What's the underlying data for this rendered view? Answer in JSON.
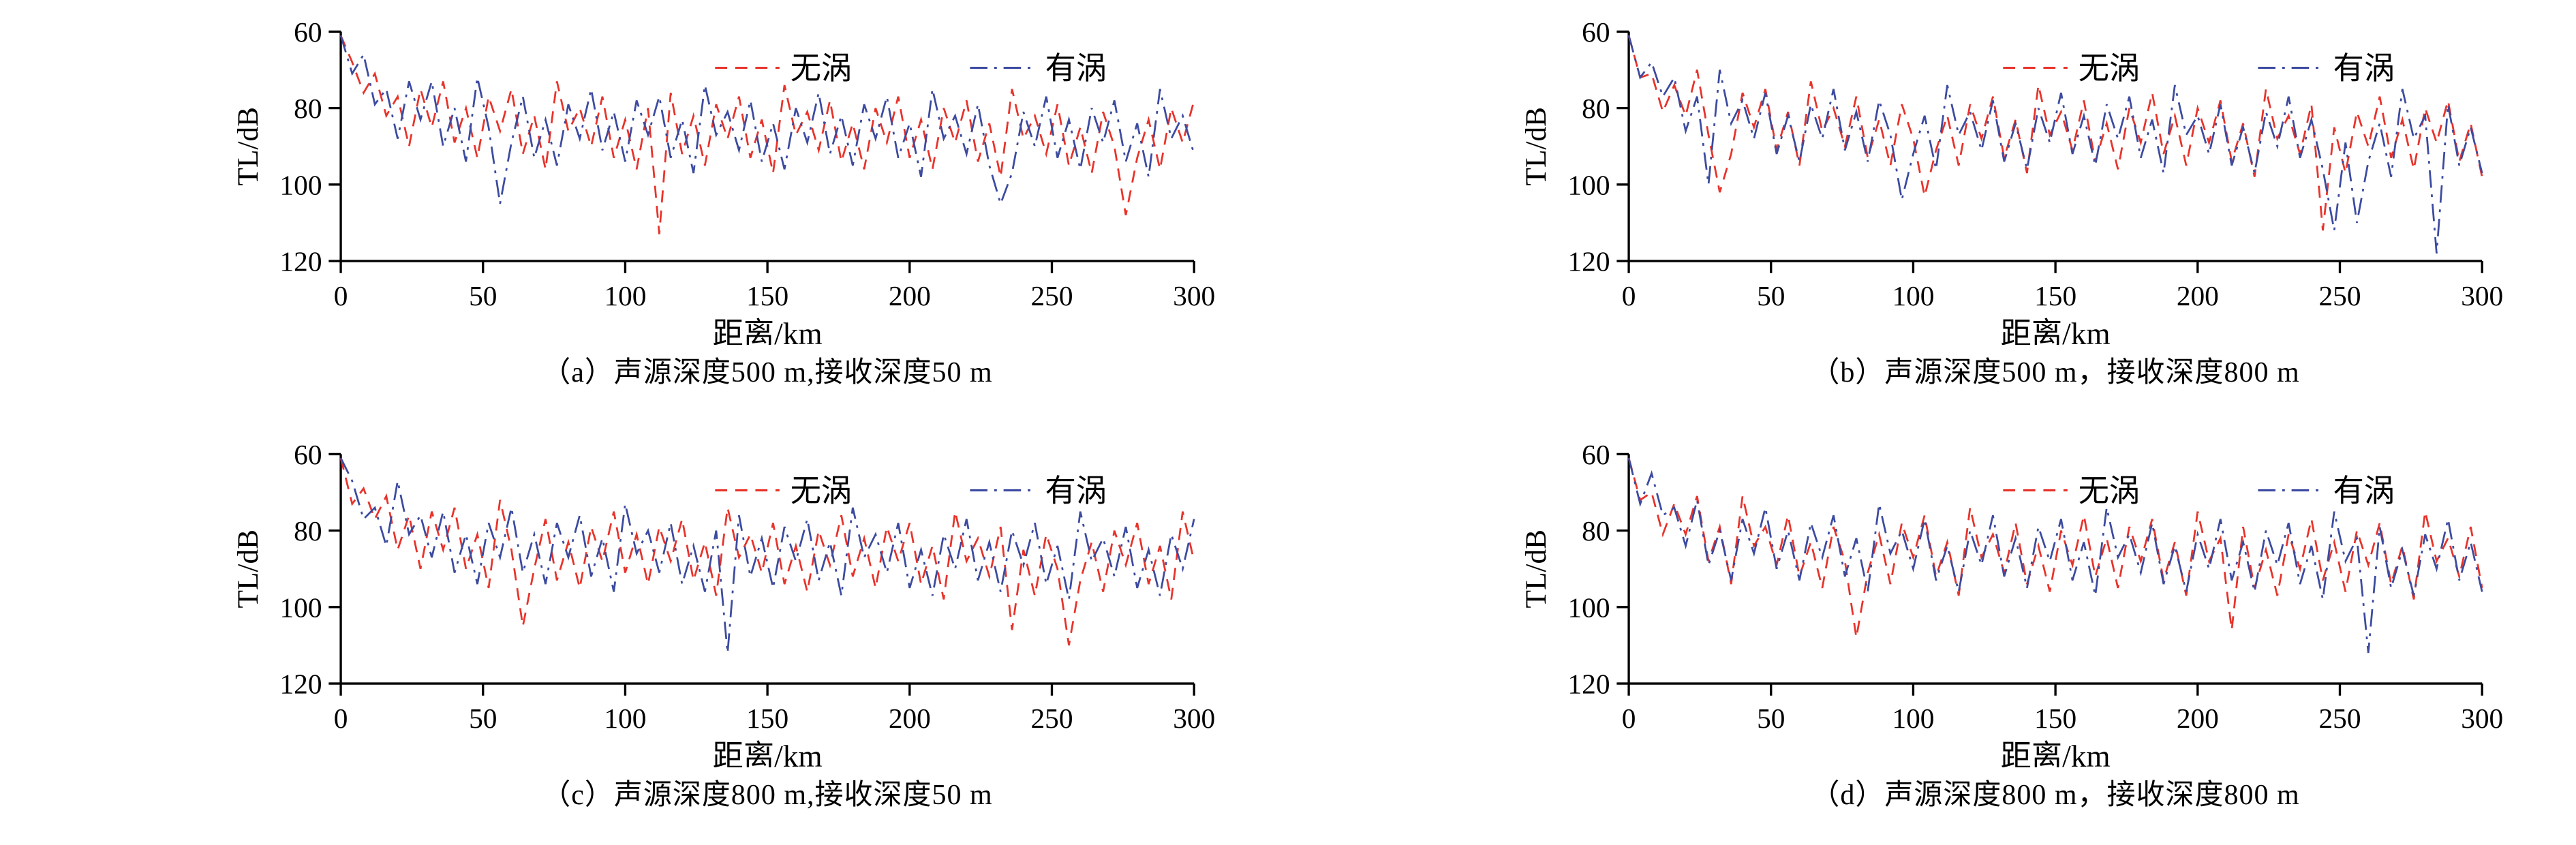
{
  "colors": {
    "no_eddy": "#e8332a",
    "with_eddy": "#3c4ba0",
    "axis": "#000000",
    "text": "#000000"
  },
  "legend": {
    "items": [
      {
        "label": "无涡",
        "color_key": "no_eddy",
        "style": "dashed"
      },
      {
        "label": "有涡",
        "color_key": "with_eddy",
        "style": "dashdot"
      }
    ],
    "position": "top-inside"
  },
  "axes": {
    "ylabel": "TL/dB",
    "xlabel": "距离/km",
    "y_ticks": [
      60,
      80,
      100,
      120
    ],
    "x_ticks": [
      0,
      50,
      100,
      150,
      200,
      250,
      300
    ],
    "y_range": [
      60,
      120
    ],
    "x_range": [
      0,
      300
    ],
    "y_inverted": true,
    "grid": false
  },
  "chart_data": [
    {
      "id": "a",
      "type": "line",
      "caption": "（a）声源深度500 m,接收深度50 m",
      "xlabel": "距离/km",
      "ylabel": "TL/dB",
      "xlim": [
        0,
        300
      ],
      "ylim": [
        60,
        120
      ],
      "y_inverted": true,
      "x_start": 0,
      "x_step": 4,
      "series": [
        {
          "name": "无涡",
          "color_key": "no_eddy",
          "style": "dashed",
          "values": [
            61,
            68,
            76,
            71,
            82,
            77,
            90,
            75,
            85,
            73,
            89,
            80,
            93,
            77,
            86,
            75,
            92,
            82,
            96,
            73,
            86,
            80,
            90,
            77,
            93,
            83,
            96,
            80,
            113,
            76,
            92,
            82,
            95,
            79,
            88,
            77,
            93,
            83,
            97,
            74,
            87,
            81,
            91,
            78,
            94,
            84,
            96,
            80,
            89,
            77,
            93,
            83,
            96,
            80,
            89,
            78,
            94,
            84,
            98,
            75,
            88,
            82,
            92,
            79,
            95,
            85,
            97,
            81,
            90,
            108,
            93,
            83,
            96,
            80,
            89,
            78
          ]
        },
        {
          "name": "有涡",
          "color_key": "with_eddy",
          "style": "dashdot",
          "values": [
            61,
            71,
            66,
            79,
            75,
            88,
            73,
            83,
            73,
            90,
            80,
            94,
            72,
            85,
            105,
            89,
            77,
            93,
            83,
            95,
            79,
            88,
            75,
            91,
            81,
            94,
            78,
            87,
            77,
            93,
            83,
            97,
            74,
            87,
            81,
            91,
            78,
            94,
            84,
            96,
            80,
            89,
            76,
            92,
            82,
            95,
            79,
            88,
            77,
            93,
            84,
            98,
            75,
            88,
            82,
            92,
            79,
            95,
            105,
            97,
            81,
            90,
            77,
            93,
            83,
            96,
            80,
            89,
            78,
            94,
            84,
            98,
            75,
            88,
            82,
            92
          ]
        }
      ]
    },
    {
      "id": "b",
      "type": "line",
      "caption": "（b）声源深度500 m，接收深度800 m",
      "xlabel": "距离/km",
      "ylabel": "TL/dB",
      "xlim": [
        0,
        300
      ],
      "ylim": [
        60,
        120
      ],
      "y_inverted": true,
      "x_start": 0,
      "x_step": 4,
      "series": [
        {
          "name": "无涡",
          "color_key": "no_eddy",
          "style": "dashed",
          "values": [
            61,
            72,
            71,
            81,
            74,
            82,
            70,
            87,
            102,
            92,
            76,
            85,
            75,
            91,
            81,
            95,
            73,
            86,
            80,
            90,
            77,
            93,
            83,
            95,
            79,
            88,
            103,
            91,
            82,
            95,
            79,
            88,
            77,
            93,
            83,
            97,
            74,
            87,
            81,
            91,
            78,
            94,
            84,
            96,
            80,
            89,
            76,
            92,
            82,
            95,
            80,
            89,
            78,
            94,
            84,
            98,
            75,
            88,
            82,
            92,
            79,
            112,
            85,
            97,
            81,
            90,
            77,
            93,
            83,
            96,
            80,
            89,
            78,
            94,
            84,
            98
          ]
        },
        {
          "name": "有涡",
          "color_key": "with_eddy",
          "style": "dashdot",
          "values": [
            61,
            72,
            68,
            77,
            72,
            86,
            77,
            100,
            70,
            84,
            78,
            88,
            76,
            92,
            82,
            94,
            79,
            88,
            75,
            91,
            81,
            94,
            78,
            87,
            104,
            92,
            82,
            96,
            74,
            87,
            81,
            91,
            78,
            94,
            84,
            96,
            80,
            89,
            76,
            92,
            82,
            95,
            79,
            88,
            77,
            93,
            83,
            97,
            74,
            87,
            82,
            92,
            79,
            95,
            85,
            97,
            81,
            90,
            77,
            93,
            83,
            96,
            112,
            89,
            110,
            94,
            84,
            98,
            75,
            88,
            82,
            118,
            79,
            95,
            85,
            97
          ]
        }
      ]
    },
    {
      "id": "c",
      "type": "line",
      "caption": "（c）声源深度800 m,接收深度50 m",
      "xlabel": "距离/km",
      "ylabel": "TL/dB",
      "xlim": [
        0,
        300
      ],
      "ylim": [
        60,
        120
      ],
      "y_inverted": true,
      "x_start": 0,
      "x_step": 4,
      "series": [
        {
          "name": "无涡",
          "color_key": "no_eddy",
          "style": "dashed",
          "values": [
            61,
            73,
            69,
            77,
            71,
            85,
            76,
            90,
            75,
            85,
            74,
            90,
            81,
            95,
            72,
            85,
            105,
            90,
            77,
            93,
            83,
            95,
            79,
            88,
            75,
            91,
            81,
            94,
            79,
            88,
            77,
            93,
            83,
            97,
            74,
            87,
            81,
            91,
            78,
            94,
            84,
            96,
            80,
            89,
            76,
            92,
            82,
            95,
            79,
            88,
            78,
            94,
            84,
            98,
            75,
            88,
            82,
            92,
            79,
            106,
            85,
            97,
            81,
            90,
            110,
            93,
            83,
            96,
            80,
            89,
            78,
            94,
            84,
            98,
            75,
            88
          ]
        },
        {
          "name": "有涡",
          "color_key": "with_eddy",
          "style": "dashdot",
          "values": [
            61,
            67,
            77,
            74,
            84,
            67,
            81,
            76,
            87,
            75,
            91,
            81,
            94,
            78,
            87,
            74,
            91,
            81,
            94,
            78,
            87,
            76,
            92,
            82,
            96,
            73,
            86,
            80,
            91,
            78,
            94,
            84,
            96,
            80,
            112,
            76,
            92,
            82,
            95,
            79,
            88,
            77,
            93,
            83,
            97,
            74,
            87,
            81,
            91,
            78,
            95,
            85,
            97,
            81,
            90,
            77,
            93,
            83,
            96,
            80,
            89,
            78,
            94,
            84,
            98,
            75,
            88,
            82,
            92,
            79,
            95,
            85,
            97,
            81,
            90,
            77
          ]
        }
      ]
    },
    {
      "id": "d",
      "type": "line",
      "caption": "（d）声源深度800 m，接收深度800 m",
      "xlabel": "距离/km",
      "ylabel": "TL/dB",
      "xlim": [
        0,
        300
      ],
      "ylim": [
        60,
        120
      ],
      "y_inverted": true,
      "x_start": 0,
      "x_step": 4,
      "series": [
        {
          "name": "无涡",
          "color_key": "no_eddy",
          "style": "dashed",
          "values": [
            61,
            72,
            70,
            81,
            73,
            81,
            71,
            88,
            79,
            94,
            71,
            84,
            79,
            89,
            76,
            92,
            83,
            95,
            79,
            88,
            108,
            91,
            81,
            94,
            78,
            87,
            76,
            92,
            83,
            97,
            74,
            87,
            81,
            91,
            78,
            94,
            84,
            96,
            80,
            89,
            76,
            92,
            82,
            95,
            79,
            88,
            77,
            93,
            83,
            97,
            75,
            88,
            82,
            106,
            79,
            95,
            85,
            97,
            81,
            90,
            77,
            93,
            83,
            96,
            80,
            89,
            78,
            94,
            84,
            98,
            75,
            88,
            82,
            92,
            79,
            95
          ]
        },
        {
          "name": "有涡",
          "color_key": "with_eddy",
          "style": "dashdot",
          "values": [
            61,
            73,
            65,
            76,
            74,
            84,
            72,
            89,
            80,
            93,
            77,
            86,
            74,
            90,
            80,
            93,
            78,
            87,
            76,
            92,
            82,
            96,
            73,
            86,
            80,
            90,
            77,
            93,
            84,
            96,
            80,
            89,
            76,
            92,
            82,
            95,
            79,
            88,
            77,
            93,
            83,
            97,
            74,
            87,
            81,
            91,
            78,
            94,
            84,
            96,
            81,
            90,
            77,
            93,
            83,
            96,
            80,
            89,
            78,
            94,
            84,
            98,
            75,
            88,
            82,
            112,
            79,
            95,
            85,
            97,
            81,
            90,
            77,
            93,
            83,
            96
          ]
        }
      ]
    }
  ]
}
